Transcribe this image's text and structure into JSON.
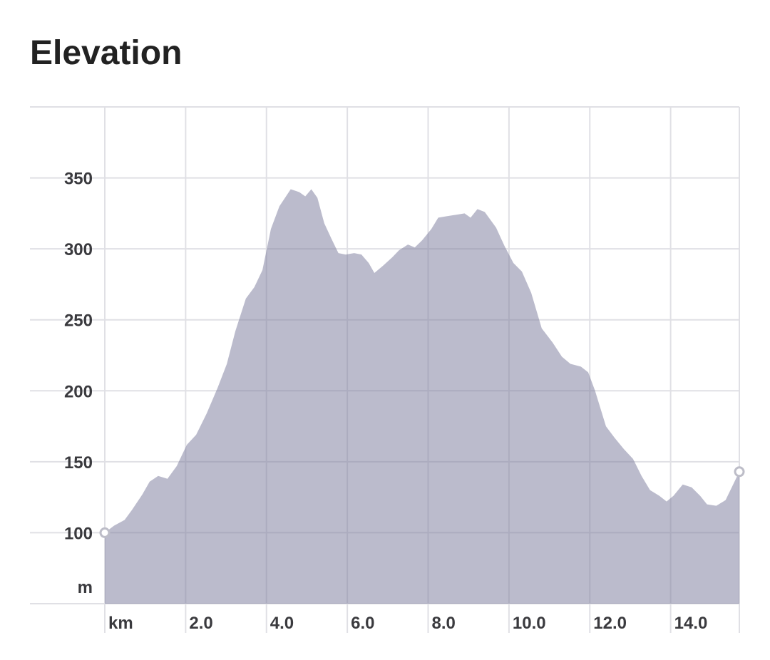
{
  "chart_data": {
    "type": "area",
    "title": "Elevation",
    "y_unit": "m",
    "x": [
      0,
      0.23,
      0.49,
      0.67,
      0.93,
      1.11,
      1.32,
      1.55,
      1.78,
      2.03,
      2.26,
      2.52,
      2.79,
      3.02,
      3.23,
      3.49,
      3.7,
      3.9,
      4.11,
      4.32,
      4.6,
      4.81,
      4.96,
      5.11,
      5.26,
      5.43,
      5.61,
      5.78,
      5.96,
      6.17,
      6.35,
      6.53,
      6.67,
      6.88,
      7.11,
      7.28,
      7.5,
      7.67,
      7.85,
      8.08,
      8.25,
      8.46,
      8.69,
      8.9,
      9.05,
      9.22,
      9.4,
      9.68,
      9.89,
      10.11,
      10.32,
      10.55,
      10.81,
      11.08,
      11.31,
      11.52,
      11.78,
      11.96,
      12.13,
      12.4,
      12.61,
      12.84,
      13.07,
      13.28,
      13.49,
      13.72,
      13.9,
      14.07,
      14.3,
      14.52,
      14.73,
      14.9,
      15.13,
      15.36,
      15.7
    ],
    "values": [
      100,
      105,
      109,
      116,
      127,
      136,
      140,
      138,
      147,
      162,
      169,
      184,
      202,
      219,
      242,
      265,
      273,
      285,
      314,
      330,
      342,
      340,
      337,
      342,
      336,
      318,
      307,
      297,
      296,
      297,
      296,
      290,
      283,
      288,
      294,
      299,
      303,
      301,
      306,
      314,
      322,
      323,
      324,
      325,
      322,
      328,
      326,
      315,
      302,
      290,
      284,
      269,
      244,
      234,
      224,
      219,
      217,
      213,
      200,
      175,
      167,
      159,
      152,
      140,
      130,
      126,
      122,
      126,
      134,
      132,
      126,
      120,
      119,
      123,
      143
    ],
    "color": "#78789a",
    "xlim": [
      0,
      15.7
    ],
    "ylim": [
      50,
      400
    ],
    "xticks": [
      {
        "value": 0,
        "label": "km"
      },
      {
        "value": 2,
        "label": "2.0"
      },
      {
        "value": 4,
        "label": "4.0"
      },
      {
        "value": 6,
        "label": "6.0"
      },
      {
        "value": 8,
        "label": "8.0"
      },
      {
        "value": 10,
        "label": "10.0"
      },
      {
        "value": 12,
        "label": "12.0"
      },
      {
        "value": 14,
        "label": "14.0"
      }
    ],
    "yticks": [
      100,
      150,
      200,
      250,
      300,
      350
    ],
    "grid": true
  }
}
